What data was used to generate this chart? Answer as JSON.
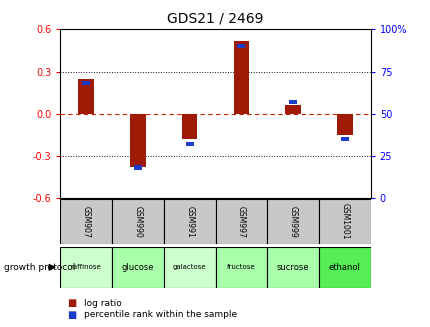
{
  "title": "GDS21 / 2469",
  "gsm_labels": [
    "GSM907",
    "GSM990",
    "GSM991",
    "GSM997",
    "GSM999",
    "GSM1001"
  ],
  "growth_labels": [
    "raffinose",
    "glucose",
    "galactose",
    "fructose",
    "sucrose",
    "ethanol"
  ],
  "log_ratios": [
    0.25,
    -0.38,
    -0.18,
    0.52,
    0.06,
    -0.15
  ],
  "percentile_ranks": [
    68,
    18,
    32,
    90,
    57,
    35
  ],
  "bar_color_red": "#9e1a05",
  "bar_color_blue": "#1a3acc",
  "ylim_left": [
    -0.6,
    0.6
  ],
  "ylim_right": [
    0,
    100
  ],
  "yticks_left": [
    -0.6,
    -0.3,
    0,
    0.3,
    0.6
  ],
  "yticks_right": [
    0,
    25,
    50,
    75,
    100
  ],
  "zero_line_color": "#cc2200",
  "grid_color": "#111111",
  "plot_bg": "#ffffff",
  "outer_bg": "#ffffff",
  "gsm_bg": "#c8c8c8",
  "growth_bg_colors": [
    "#ccffcc",
    "#aaffaa",
    "#ccffcc",
    "#aaffaa",
    "#aaffaa",
    "#55ee55"
  ],
  "legend_log_ratio": "log ratio",
  "legend_percentile": "percentile rank within the sample",
  "growth_protocol_label": "growth protocol",
  "title_fontsize": 10,
  "tick_fontsize": 7,
  "bar_width": 0.3,
  "blue_bar_height": 0.03,
  "blue_bar_width": 0.15
}
